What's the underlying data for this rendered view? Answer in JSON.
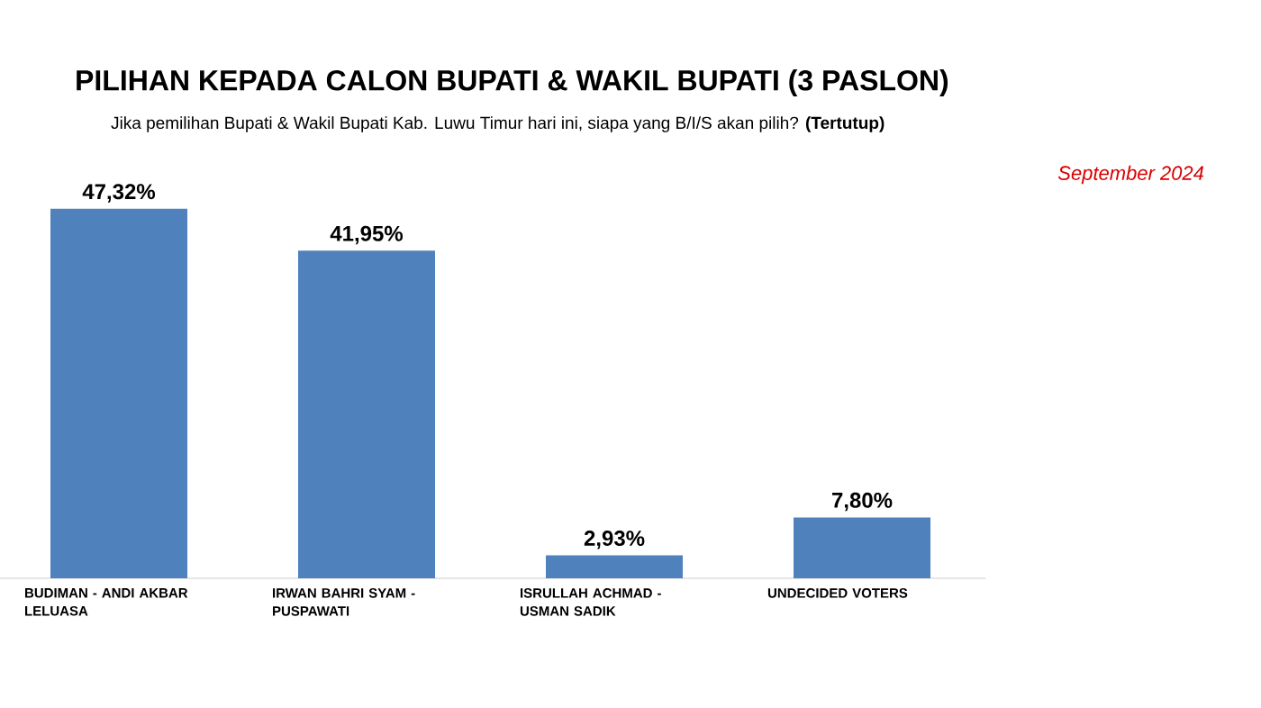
{
  "chart_data": {
    "type": "bar",
    "title": "PILIHAN KEPADA CALON BUPATI & WAKIL BUPATI (3 PASLON)",
    "subtitle": "Jika pemilihan Bupati & Wakil Bupati Kab. Luwu Timur hari ini, siapa yang B/I/S akan pilih? **(Tertutup)**",
    "annotations": [
      "September 2024"
    ],
    "categories": [
      "BUDIMAN  - ANDI AKBAR LELUASA",
      "IRWAN BAHRI SYAM - PUSPAWATI",
      "ISRULLAH ACHMAD - USMAN SADIK",
      "UNDECIDED VOTERS"
    ],
    "values": [
      47.32,
      41.95,
      2.93,
      7.8
    ],
    "value_labels": [
      "47,32%",
      "41,95%",
      "2,93%",
      "7,80%"
    ],
    "color": "#4f81bd"
  }
}
